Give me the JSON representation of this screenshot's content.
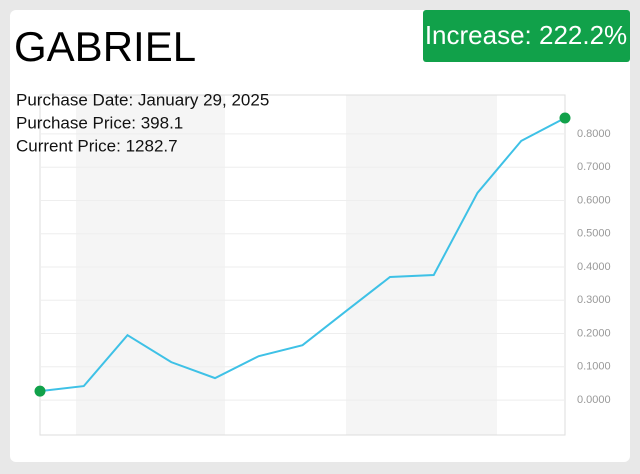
{
  "chart_data": {
    "type": "line",
    "title": "GABRIEL",
    "annotations": [
      "Increase: 222.2%",
      "Purchase Date: January 29, 2025",
      "Purchase Price: 398.1",
      "Current Price: 1282.7"
    ],
    "categories": [
      null,
      null,
      null,
      null,
      null,
      null,
      null,
      null,
      null,
      null,
      null,
      null,
      null
    ],
    "series": [
      {
        "color": "#3ec1e6",
        "values": [
          0.027,
          0.042,
          0.195,
          0.114,
          0.066,
          0.132,
          0.165,
          0.268,
          0.37,
          0.376,
          0.623,
          0.779,
          0.848
        ]
      }
    ],
    "marker_color": "#11a14a",
    "ylim": [
      -0.105,
      0.917
    ],
    "yticks": [
      {
        "value": 0,
        "label": "0.0000"
      },
      {
        "value": 0.1,
        "label": "0.1000"
      },
      {
        "value": 0.2,
        "label": "0.2000"
      },
      {
        "value": 0.3,
        "label": "0.3000"
      },
      {
        "value": 0.4,
        "label": "0.4000"
      },
      {
        "value": 0.5,
        "label": "0.5000"
      },
      {
        "value": 0.6,
        "label": "0.6000"
      },
      {
        "value": 0.7,
        "label": "0.7000"
      },
      {
        "value": 0.8,
        "label": "0.8000"
      }
    ],
    "grid": true
  }
}
